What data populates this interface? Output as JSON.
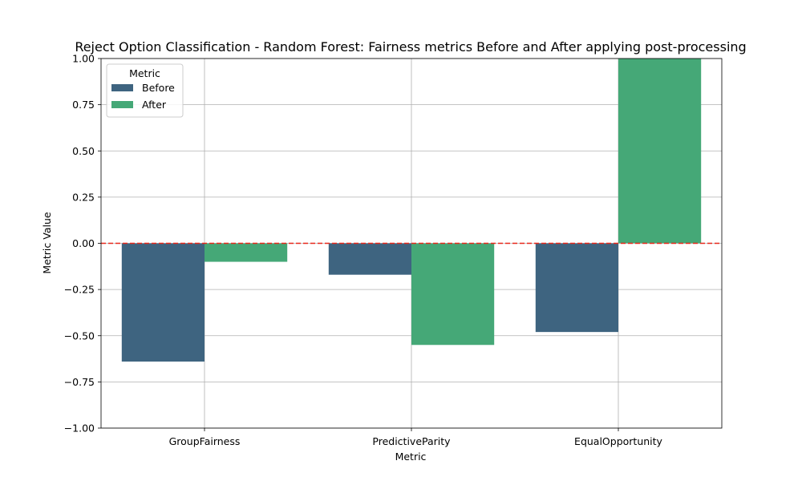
{
  "chart_data": {
    "type": "bar",
    "title": "Reject Option Classification - Random Forest: Fairness metrics Before and After applying post-processing",
    "xlabel": "Metric",
    "ylabel": "Metric Value",
    "categories": [
      "GroupFairness",
      "PredictiveParity",
      "EqualOpportunity"
    ],
    "series": [
      {
        "name": "Before",
        "values": [
          -0.64,
          -0.17,
          -0.48
        ],
        "color": "#3e6480"
      },
      {
        "name": "After",
        "values": [
          -0.1,
          -0.55,
          1.0
        ],
        "color": "#45a877"
      }
    ],
    "ylim": [
      -1.0,
      1.0
    ],
    "yticks": [
      "−1.00",
      "−0.75",
      "−0.50",
      "−0.25",
      "0.00",
      "0.25",
      "0.50",
      "0.75",
      "1.00"
    ],
    "ytick_values": [
      -1.0,
      -0.75,
      -0.5,
      -0.25,
      0.0,
      0.25,
      0.5,
      0.75,
      1.0
    ],
    "grid": true,
    "reference_line": {
      "y": 0,
      "color": "#e8291c",
      "style": "dashed"
    },
    "legend": {
      "title": "Metric",
      "placement": "top-left"
    }
  }
}
